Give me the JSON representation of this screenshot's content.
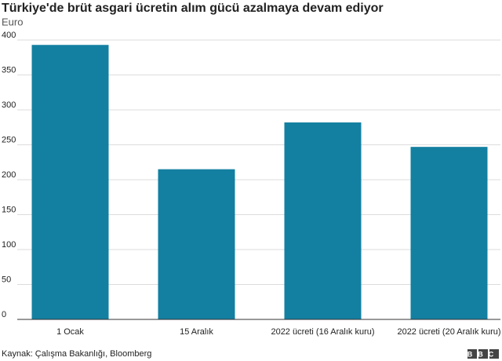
{
  "chart_data": {
    "type": "bar",
    "title": "Türkiye'de brüt asgari ücretin alım gücü azalmaya devam ediyor",
    "subtitle": "Euro",
    "categories": [
      "1 Ocak",
      "15 Aralık",
      "2022 ücreti (16 Aralık kuru)",
      "2022 ücreti (20 Aralık kuru)"
    ],
    "values": [
      393,
      215,
      282,
      247
    ],
    "color": "#1380a1",
    "ylim": [
      0,
      400
    ],
    "yticks": [
      0,
      50,
      100,
      150,
      200,
      250,
      300,
      350,
      400
    ],
    "grid": true,
    "source": "Kaynak: Çalışma Bakanlığı, Bloomberg",
    "logo": "BBC"
  }
}
